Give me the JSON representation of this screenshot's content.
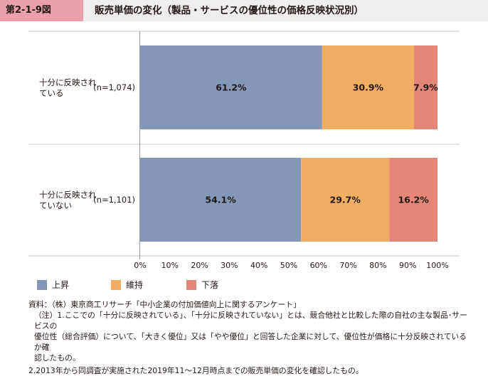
{
  "figure": {
    "number": "第2-1-9図",
    "title": "販売単価の変化（製品・サービスの優位性の価格反映状況別）"
  },
  "chart_data": {
    "type": "bar",
    "orientation": "horizontal-stacked-100",
    "categories": [
      {
        "label_lines": [
          "十分に反映され",
          "ている"
        ],
        "n": "(n=1,074)"
      },
      {
        "label_lines": [
          "十分に反映され",
          "ていない"
        ],
        "n": "(n=1,101)"
      }
    ],
    "series": [
      {
        "name": "上昇",
        "color": "#8497b9",
        "values": [
          61.2,
          54.1
        ],
        "labels": [
          "61.2%",
          "54.1%"
        ]
      },
      {
        "name": "維持",
        "color": "#f0ad63",
        "values": [
          30.9,
          29.7
        ],
        "labels": [
          "30.9%",
          "29.7%"
        ]
      },
      {
        "name": "下落",
        "color": "#e48677",
        "values": [
          7.9,
          16.2
        ],
        "labels": [
          "7.9%",
          "16.2%"
        ]
      }
    ],
    "xlim": [
      0,
      100
    ],
    "xticks": [
      "0%",
      "10%",
      "20%",
      "30%",
      "40%",
      "50%",
      "60%",
      "70%",
      "80%",
      "90%",
      "100%"
    ],
    "legend_position": "bottom"
  },
  "notes": {
    "source": "資料：（株）東京商工リサーチ「中小企業の付加価値向上に関するアンケート」",
    "note1_line1": "（注）1.ここでの「十分に反映されている」、「十分に反映されていない」とは、競合他社と比較した際の自社の主な製品･サービスの",
    "note1_line2": "優位性（総合評価）について、「大きく優位」又は「やや優位」と回答した企業に対して、優位性が価格に十分反映されているか確",
    "note1_line3": "認したもの。",
    "note2": "2.2013年から同調査が実施された2019年11～12月時点までの販売単価の変化を確認したもの。"
  }
}
